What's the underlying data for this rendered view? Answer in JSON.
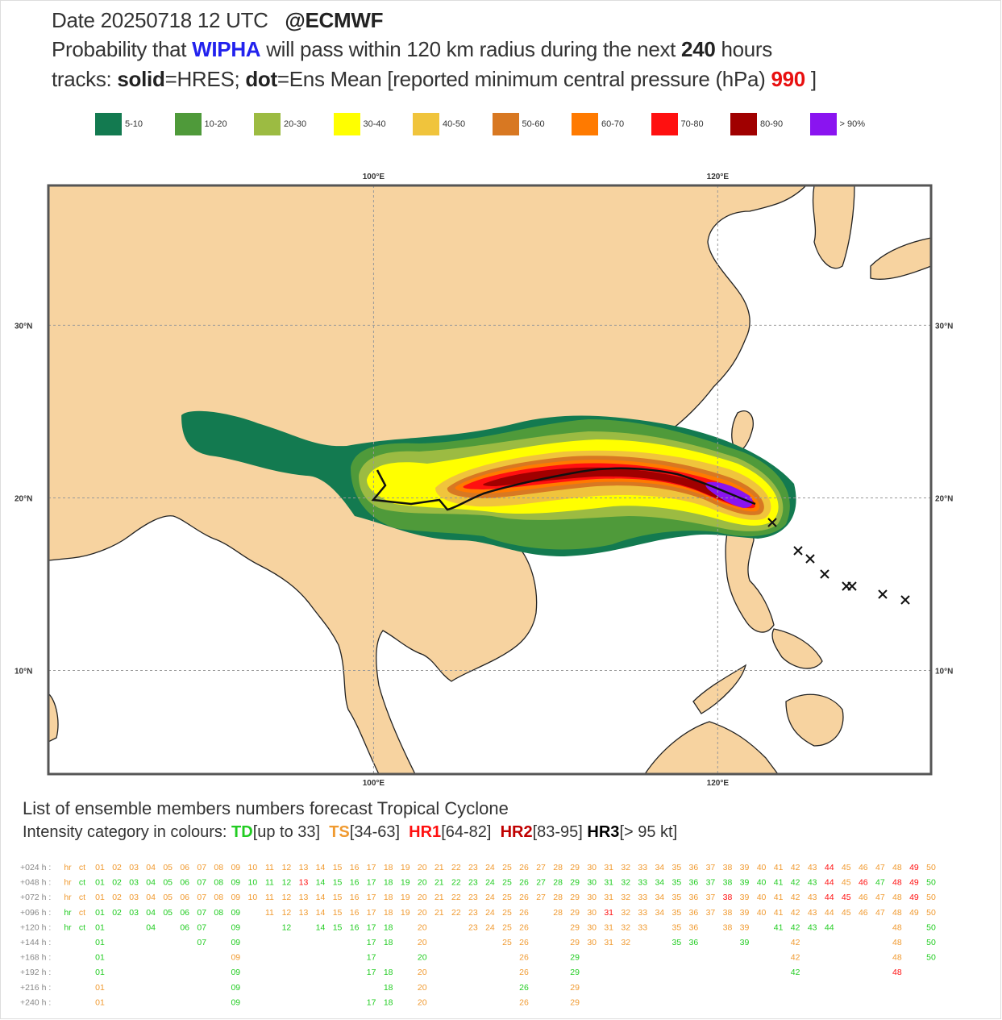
{
  "header": {
    "line1": [
      "Date 20250718 12 UTC",
      "@ECMWF"
    ],
    "line2": [
      "Probability that ",
      "WIPHA",
      " will pass within 120 km radius during the next ",
      "240",
      " hours"
    ],
    "line3": [
      "tracks: ",
      "solid",
      "=HRES; ",
      "dot",
      "=Ens Mean [reported minimum central pressure (hPa) ",
      "990",
      " ]"
    ]
  },
  "legend": [
    {
      "label": "5-10",
      "color": "#137a50"
    },
    {
      "label": "10-20",
      "color": "#4f9a3a"
    },
    {
      "label": "20-30",
      "color": "#9cbb42"
    },
    {
      "label": "30-40",
      "color": "#ffff00"
    },
    {
      "label": "40-50",
      "color": "#f0c43c"
    },
    {
      "label": "50-60",
      "color": "#d87822"
    },
    {
      "label": "60-70",
      "color": "#ff7a00"
    },
    {
      "label": "70-80",
      "color": "#ff1010"
    },
    {
      "label": "80-90",
      "color": "#a00000"
    },
    {
      "label": "> 90%",
      "color": "#8a14f0"
    }
  ],
  "map": {
    "lonlim": [
      81.1,
      132.4
    ],
    "latlim": [
      4.0,
      38.1
    ],
    "lon_ticks": [
      {
        "value": 100,
        "label": "100°E"
      },
      {
        "value": 120,
        "label": "120°E"
      }
    ],
    "lat_ticks": [
      {
        "value": 30,
        "label": "30°N"
      },
      {
        "value": 20,
        "label": "20°N"
      },
      {
        "value": 10,
        "label": "10°N"
      }
    ]
  },
  "members": {
    "title": "List of ensemble members numbers forecast Tropical Cyclone",
    "intensity_line": [
      "Intensity category in colours: ",
      "TD",
      "[up to 33]",
      "TS",
      "[34-63]",
      "HR1",
      "[64-82]",
      "HR2",
      "[83-95]",
      "HR3",
      "[> 95 kt]"
    ],
    "category_colors": {
      "TD": "#22cc22",
      "TS": "#f09a30",
      "HR1": "#ff1010",
      "HR2": "#c00000",
      "HR3": "#000000"
    },
    "rows": [
      {
        "label": "+024 h :",
        "members": [
          "hr",
          "ct",
          "01",
          "02",
          "03",
          "04",
          "05",
          "06",
          "07",
          "08",
          "09",
          "10",
          "11",
          "12",
          "13",
          "14",
          "15",
          "16",
          "17",
          "18",
          "19",
          "20",
          "21",
          "22",
          "23",
          "24",
          "25",
          "26",
          "27",
          "28",
          "29",
          "30",
          "31",
          "32",
          "33",
          "34",
          "35",
          "36",
          "37",
          "38",
          "39",
          "40",
          "41",
          "42",
          "43",
          "44",
          "45",
          "46",
          "47",
          "48",
          "49",
          "50"
        ],
        "intensity": [
          "TS",
          "TS",
          "TS",
          "TS",
          "TS",
          "TS",
          "TS",
          "TS",
          "TS",
          "TS",
          "TS",
          "TS",
          "TS",
          "TS",
          "TS",
          "TS",
          "TS",
          "TS",
          "TS",
          "TS",
          "TS",
          "TS",
          "TS",
          "TS",
          "TS",
          "TS",
          "TS",
          "TS",
          "TS",
          "TS",
          "TS",
          "TS",
          "TS",
          "TS",
          "TS",
          "TS",
          "TS",
          "TS",
          "TS",
          "TS",
          "TS",
          "TS",
          "TS",
          "TS",
          "TS",
          "HR1",
          "TS",
          "TS",
          "TS",
          "TS",
          "HR1",
          "TS"
        ]
      },
      {
        "label": "+048 h :",
        "members": [
          "hr",
          "ct",
          "01",
          "02",
          "03",
          "04",
          "05",
          "06",
          "07",
          "08",
          "09",
          "10",
          "11",
          "12",
          "13",
          "14",
          "15",
          "16",
          "17",
          "18",
          "19",
          "20",
          "21",
          "22",
          "23",
          "24",
          "25",
          "26",
          "27",
          "28",
          "29",
          "30",
          "31",
          "32",
          "33",
          "34",
          "35",
          "36",
          "37",
          "38",
          "39",
          "40",
          "41",
          "42",
          "43",
          "44",
          "45",
          "46",
          "47",
          "48",
          "49",
          "50"
        ],
        "intensity": [
          "TS",
          "TD",
          "TD",
          "TD",
          "TD",
          "TD",
          "TD",
          "TD",
          "TD",
          "TD",
          "TD",
          "TD",
          "TD",
          "TD",
          "HR1",
          "TD",
          "TD",
          "TD",
          "TD",
          "TD",
          "TD",
          "TD",
          "TD",
          "TD",
          "TD",
          "TD",
          "TD",
          "TD",
          "TD",
          "TD",
          "TD",
          "TD",
          "TD",
          "TD",
          "TD",
          "TD",
          "TD",
          "TD",
          "TD",
          "TD",
          "TD",
          "TD",
          "TD",
          "TD",
          "TD",
          "HR1",
          "TS",
          "HR1",
          "TD",
          "HR1",
          "HR1",
          "TD"
        ]
      },
      {
        "label": "+072 h :",
        "members": [
          "hr",
          "ct",
          "01",
          "02",
          "03",
          "04",
          "05",
          "06",
          "07",
          "08",
          "09",
          "10",
          "11",
          "12",
          "13",
          "14",
          "15",
          "16",
          "17",
          "18",
          "19",
          "20",
          "21",
          "22",
          "23",
          "24",
          "25",
          "26",
          "27",
          "28",
          "29",
          "30",
          "31",
          "32",
          "33",
          "34",
          "35",
          "36",
          "37",
          "38",
          "39",
          "40",
          "41",
          "42",
          "43",
          "44",
          "45",
          "46",
          "47",
          "48",
          "49",
          "50"
        ],
        "intensity": [
          "TS",
          "TS",
          "TS",
          "TS",
          "TS",
          "TS",
          "TS",
          "TS",
          "TS",
          "TS",
          "TS",
          "TS",
          "TS",
          "TS",
          "TS",
          "TS",
          "TS",
          "TS",
          "TS",
          "TS",
          "TS",
          "TS",
          "TS",
          "TS",
          "TS",
          "TS",
          "TS",
          "TS",
          "TS",
          "TS",
          "TS",
          "TS",
          "TS",
          "TS",
          "TS",
          "TS",
          "TS",
          "TS",
          "TS",
          "HR1",
          "TS",
          "TS",
          "TS",
          "TS",
          "TS",
          "HR1",
          "HR1",
          "TS",
          "TS",
          "TS",
          "HR1",
          "TS"
        ]
      },
      {
        "label": "+096 h :",
        "members": [
          "hr",
          "ct",
          "01",
          "02",
          "03",
          "04",
          "05",
          "06",
          "07",
          "08",
          "09",
          "11",
          "12",
          "13",
          "14",
          "15",
          "16",
          "17",
          "18",
          "19",
          "20",
          "21",
          "22",
          "23",
          "24",
          "25",
          "26",
          "28",
          "29",
          "30",
          "31",
          "32",
          "33",
          "34",
          "35",
          "36",
          "37",
          "38",
          "39",
          "40",
          "41",
          "42",
          "43",
          "44",
          "45",
          "46",
          "47",
          "48",
          "49",
          "50"
        ],
        "intensity": [
          "TD",
          "TS",
          "TD",
          "TD",
          "TD",
          "TD",
          "TD",
          "TD",
          "TD",
          "TD",
          "TD",
          "TS",
          "TS",
          "TS",
          "TS",
          "TS",
          "TS",
          "TS",
          "TS",
          "TS",
          "TS",
          "TS",
          "TS",
          "TS",
          "TS",
          "TS",
          "TS",
          "TS",
          "TS",
          "TS",
          "HR1",
          "TS",
          "TS",
          "TS",
          "TS",
          "TS",
          "TS",
          "TS",
          "TS",
          "TS",
          "TS",
          "TS",
          "TS",
          "TS",
          "TS",
          "TS",
          "TS",
          "TS",
          "TS",
          "TS"
        ]
      },
      {
        "label": "+120 h :",
        "members": [
          "hr",
          "ct",
          "01",
          "04",
          "06",
          "07",
          "09",
          "12",
          "14",
          "15",
          "16",
          "17",
          "18",
          "20",
          "23",
          "24",
          "25",
          "26",
          "29",
          "30",
          "31",
          "32",
          "33",
          "35",
          "36",
          "38",
          "39",
          "41",
          "42",
          "43",
          "44",
          "48",
          "50"
        ],
        "intensity": [
          "TD",
          "TD",
          "TD",
          "TD",
          "TD",
          "TD",
          "TD",
          "TD",
          "TD",
          "TD",
          "TD",
          "TD",
          "TD",
          "TS",
          "TS",
          "TS",
          "TS",
          "TS",
          "TS",
          "TS",
          "TS",
          "TS",
          "TS",
          "TS",
          "TS",
          "TS",
          "TS",
          "TD",
          "TD",
          "TD",
          "TD",
          "TS",
          "TD"
        ]
      },
      {
        "label": "+144 h :",
        "members": [
          "01",
          "07",
          "09",
          "17",
          "18",
          "20",
          "25",
          "26",
          "29",
          "30",
          "31",
          "32",
          "35",
          "36",
          "39",
          "42",
          "48",
          "50"
        ],
        "intensity": [
          "TD",
          "TD",
          "TD",
          "TD",
          "TD",
          "TS",
          "TS",
          "TS",
          "TS",
          "TS",
          "TS",
          "TS",
          "TD",
          "TD",
          "TD",
          "TS",
          "TS",
          "TD"
        ]
      },
      {
        "label": "+168 h :",
        "members": [
          "01",
          "09",
          "17",
          "20",
          "26",
          "29",
          "42",
          "48",
          "50"
        ],
        "intensity": [
          "TD",
          "TS",
          "TD",
          "TD",
          "TS",
          "TD",
          "TS",
          "TS",
          "TD"
        ]
      },
      {
        "label": "+192 h :",
        "members": [
          "01",
          "09",
          "17",
          "18",
          "20",
          "26",
          "29",
          "42",
          "48"
        ],
        "intensity": [
          "TD",
          "TD",
          "TD",
          "TD",
          "TS",
          "TS",
          "TD",
          "TD",
          "HR1"
        ]
      },
      {
        "label": "+216 h :",
        "members": [
          "01",
          "09",
          "18",
          "20",
          "26",
          "29"
        ],
        "intensity": [
          "TS",
          "TD",
          "TD",
          "TS",
          "TD",
          "TS"
        ]
      },
      {
        "label": "+240 h :",
        "members": [
          "01",
          "09",
          "17",
          "18",
          "20",
          "26",
          "29"
        ],
        "intensity": [
          "TS",
          "TD",
          "TD",
          "TD",
          "TS",
          "TS",
          "TS"
        ]
      }
    ]
  }
}
